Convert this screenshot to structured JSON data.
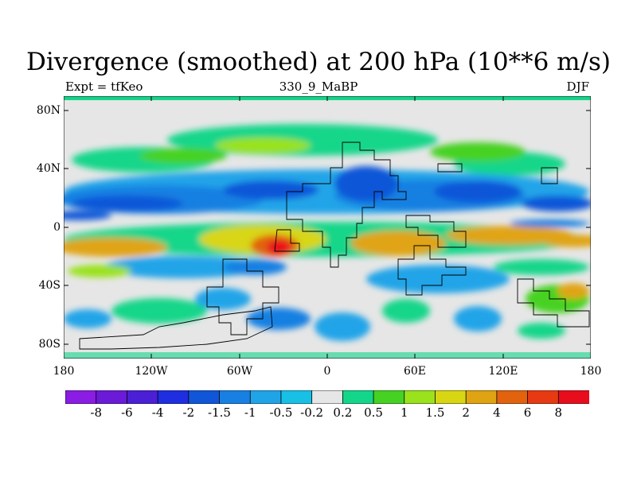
{
  "title": "Divergence (smoothed) at 200 hPa (10**6 m/s)",
  "subtitle_left": "Expt = tfKeo",
  "subtitle_center": "330_9_MaBP",
  "subtitle_right": "DJF",
  "lat_ticks": [
    "80N",
    "40N",
    "0",
    "40S",
    "80S"
  ],
  "lon_ticks": [
    "180",
    "120W",
    "60W",
    "0",
    "60E",
    "120E",
    "180"
  ],
  "colorbar": {
    "labels": [
      "-8",
      "-6",
      "-4",
      "-2",
      "-1.5",
      "-1",
      "-0.5",
      "-0.2",
      "0.2",
      "0.5",
      "1",
      "1.5",
      "2",
      "4",
      "6",
      "8"
    ],
    "colors": [
      "#8a1ce3",
      "#6b1ad8",
      "#4b1fd6",
      "#1f2ee0",
      "#1156d8",
      "#1880e2",
      "#20a4e8",
      "#19c0e6",
      "#e6e6e6",
      "#14d68a",
      "#46d223",
      "#9ae21c",
      "#d8d613",
      "#e0a412",
      "#e2620e",
      "#e83a12",
      "#e80d1c"
    ]
  },
  "map_colors": {
    "background": "#e6e6e6",
    "land_outline": "#000000"
  }
}
